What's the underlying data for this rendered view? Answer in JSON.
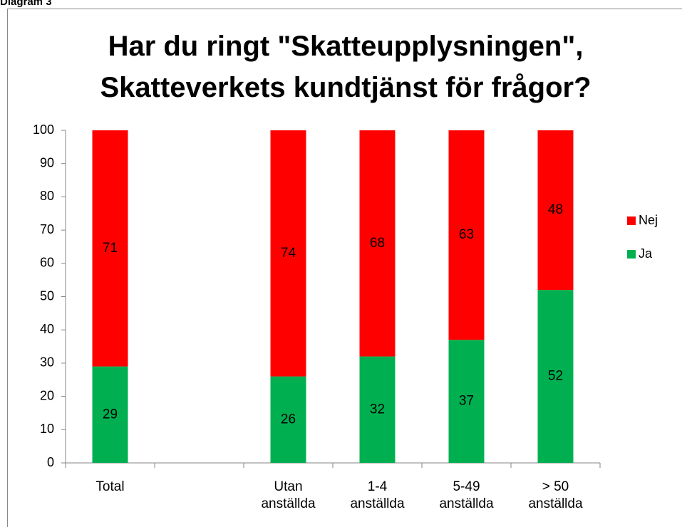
{
  "label": "Diagram 3",
  "chart_data": {
    "type": "stacked_bar",
    "title": "Har du ringt \"Skatteupplysningen\", Skatteverkets kundtjänst för frågor?",
    "categories": [
      "Total",
      null,
      "Utan anställda",
      "1-4 anställda",
      "5-49 anställda",
      "> 50 anställda"
    ],
    "series": [
      {
        "name": "Ja",
        "color": "#00b050",
        "values": [
          29,
          null,
          26,
          32,
          37,
          52
        ]
      },
      {
        "name": "Nej",
        "color": "#ff0000",
        "values": [
          71,
          null,
          74,
          68,
          63,
          48
        ]
      }
    ],
    "ylim": [
      0,
      100
    ],
    "yticks": [
      0,
      10,
      20,
      30,
      40,
      50,
      60,
      70,
      80,
      90,
      100
    ],
    "legend": "right"
  }
}
